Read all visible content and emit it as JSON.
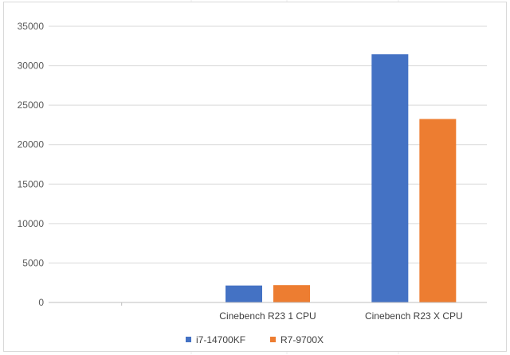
{
  "chart_data": {
    "type": "bar",
    "categories": [
      "",
      "Cinebench R23 1 CPU",
      "Cinebench R23 X CPU"
    ],
    "series": [
      {
        "name": "i7-14700KF",
        "color": "#4472C4",
        "values": [
          0,
          2150,
          31450
        ]
      },
      {
        "name": "R7-9700X",
        "color": "#ED7D31",
        "values": [
          0,
          2200,
          23250
        ]
      }
    ],
    "ylim": [
      0,
      35000
    ],
    "yticks": [
      0,
      5000,
      10000,
      15000,
      20000,
      25000,
      30000,
      35000
    ],
    "grid": true,
    "legend_position": "bottom"
  }
}
